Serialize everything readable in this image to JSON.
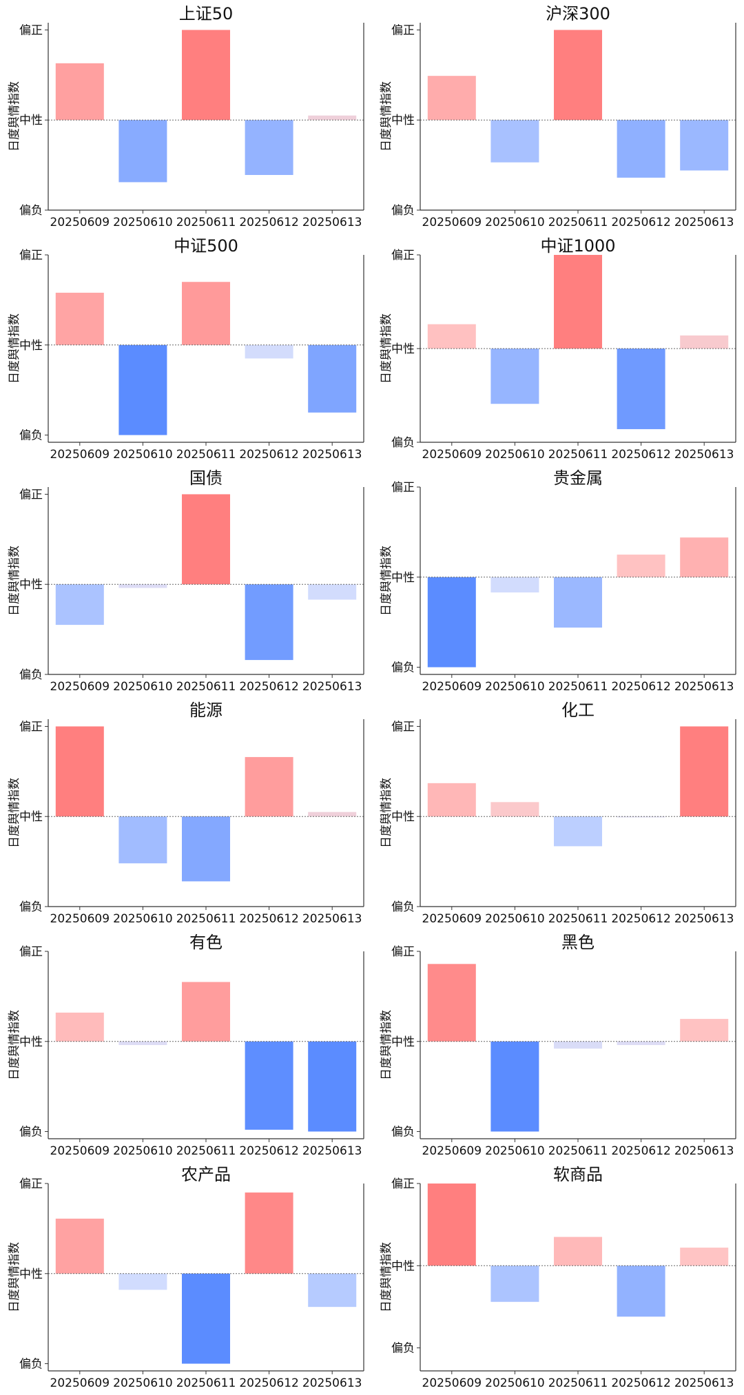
{
  "y_axis_label": "日度舆情指数",
  "y_ticks": [
    "偏正",
    "中性",
    "偏负"
  ],
  "dates": [
    "20250609",
    "20250610",
    "20250611",
    "20250612",
    "20250613"
  ],
  "colors": {
    "positive": "#ff7f7f",
    "negative": "#5b8cff",
    "axis": "#333333",
    "zero_line": "#666666"
  },
  "chart_data": [
    {
      "type": "bar",
      "title": "上证50",
      "categories": [
        "20250609",
        "20250610",
        "20250611",
        "20250612",
        "20250613"
      ],
      "values": [
        0.63,
        -0.69,
        1.0,
        -0.61,
        0.05
      ],
      "ylim": [
        -1.0,
        1.08
      ]
    },
    {
      "type": "bar",
      "title": "沪深300",
      "categories": [
        "20250609",
        "20250610",
        "20250611",
        "20250612",
        "20250613"
      ],
      "values": [
        0.49,
        -0.47,
        1.0,
        -0.64,
        -0.56
      ],
      "ylim": [
        -1.0,
        1.08
      ]
    },
    {
      "type": "bar",
      "title": "中证500",
      "categories": [
        "20250609",
        "20250610",
        "20250611",
        "20250612",
        "20250613"
      ],
      "values": [
        0.58,
        -1.0,
        0.7,
        -0.15,
        -0.75
      ],
      "ylim": [
        -1.08,
        1.0
      ]
    },
    {
      "type": "bar",
      "title": "中证1000",
      "categories": [
        "20250609",
        "20250610",
        "20250611",
        "20250612",
        "20250613"
      ],
      "values": [
        0.26,
        -0.59,
        1.0,
        -0.86,
        0.14
      ],
      "ylim": [
        -1.0,
        1.0
      ]
    },
    {
      "type": "bar",
      "title": "国债",
      "categories": [
        "20250609",
        "20250610",
        "20250611",
        "20250612",
        "20250613"
      ],
      "values": [
        -0.45,
        -0.04,
        1.0,
        -0.84,
        -0.17
      ],
      "ylim": [
        -1.0,
        1.08
      ]
    },
    {
      "type": "bar",
      "title": "贵金属",
      "categories": [
        "20250609",
        "20250610",
        "20250611",
        "20250612",
        "20250613"
      ],
      "values": [
        -1.0,
        -0.17,
        -0.56,
        0.25,
        0.44
      ],
      "ylim": [
        -1.08,
        1.0
      ]
    },
    {
      "type": "bar",
      "title": "能源",
      "categories": [
        "20250609",
        "20250610",
        "20250611",
        "20250612",
        "20250613"
      ],
      "values": [
        1.0,
        -0.52,
        -0.72,
        0.66,
        0.05
      ],
      "ylim": [
        -1.0,
        1.08
      ]
    },
    {
      "type": "bar",
      "title": "化工",
      "categories": [
        "20250609",
        "20250610",
        "20250611",
        "20250612",
        "20250613"
      ],
      "values": [
        0.37,
        0.16,
        -0.33,
        -0.01,
        1.0
      ],
      "ylim": [
        -1.0,
        1.08
      ]
    },
    {
      "type": "bar",
      "title": "有色",
      "categories": [
        "20250609",
        "20250610",
        "20250611",
        "20250612",
        "20250613"
      ],
      "values": [
        0.32,
        -0.04,
        0.66,
        -0.98,
        -1.0
      ],
      "ylim": [
        -1.08,
        1.0
      ]
    },
    {
      "type": "bar",
      "title": "黑色",
      "categories": [
        "20250609",
        "20250610",
        "20250611",
        "20250612",
        "20250613"
      ],
      "values": [
        0.86,
        -1.0,
        -0.08,
        -0.04,
        0.25
      ],
      "ylim": [
        -1.08,
        1.0
      ]
    },
    {
      "type": "bar",
      "title": "农产品",
      "categories": [
        "20250609",
        "20250610",
        "20250611",
        "20250612",
        "20250613"
      ],
      "values": [
        0.61,
        -0.18,
        -1.0,
        0.9,
        -0.37
      ],
      "ylim": [
        -1.08,
        1.0
      ]
    },
    {
      "type": "bar",
      "title": "软商品",
      "categories": [
        "20250609",
        "20250610",
        "20250611",
        "20250612",
        "20250613"
      ],
      "values": [
        1.0,
        -0.44,
        0.35,
        -0.62,
        0.22
      ],
      "ylim": [
        -1.28,
        1.0
      ]
    }
  ]
}
